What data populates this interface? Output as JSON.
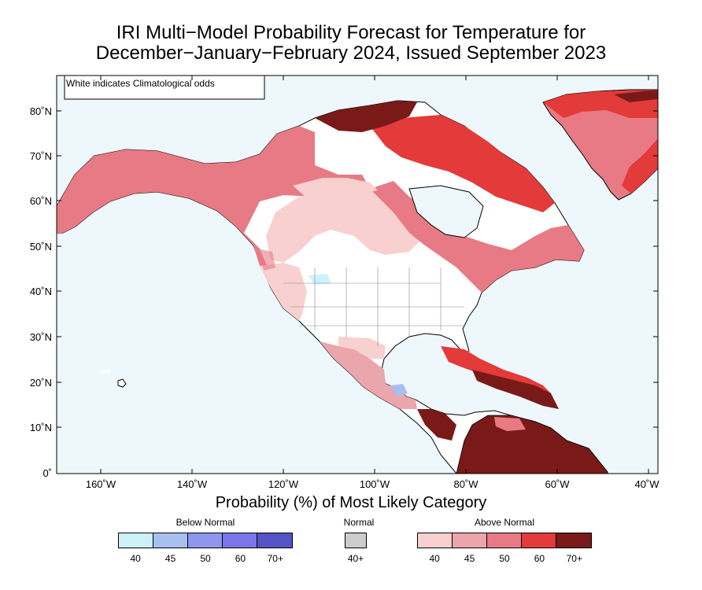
{
  "title": {
    "line1": "IRI Multi−Model Probability Forecast for Temperature for",
    "line2": "December−January−February 2024, Issued September 2023"
  },
  "note": "White indicates Climatological odds",
  "lat_labels": [
    "80˚N",
    "70˚N",
    "60˚N",
    "50˚N",
    "40˚N",
    "30˚N",
    "20˚N",
    "10˚N",
    "0˚"
  ],
  "lon_labels": [
    "160˚W",
    "140˚W",
    "120˚W",
    "100˚W",
    "80˚W",
    "60˚W",
    "40˚W"
  ],
  "legend": {
    "title": "Probability (%) of Most Likely Category",
    "below_normal": {
      "label": "Below Normal",
      "ticks": [
        "40",
        "45",
        "50",
        "60",
        "70+"
      ],
      "colors": [
        "#cdf1f8",
        "#a8c0f0",
        "#8f96ee",
        "#7a76e8",
        "#5353c4"
      ]
    },
    "normal": {
      "label": "Normal",
      "ticks": [
        "40+"
      ],
      "colors": [
        "#cccccc"
      ]
    },
    "above_normal": {
      "label": "Above Normal",
      "ticks": [
        "40",
        "45",
        "50",
        "60",
        "70+"
      ],
      "colors": [
        "#f8d0d0",
        "#eaa6aa",
        "#e77a84",
        "#e33a3a",
        "#7a1a18"
      ]
    }
  },
  "map_colors": {
    "ocean": "#eef7fc",
    "land_neutral": "#ffffff",
    "coast": "#000000"
  }
}
